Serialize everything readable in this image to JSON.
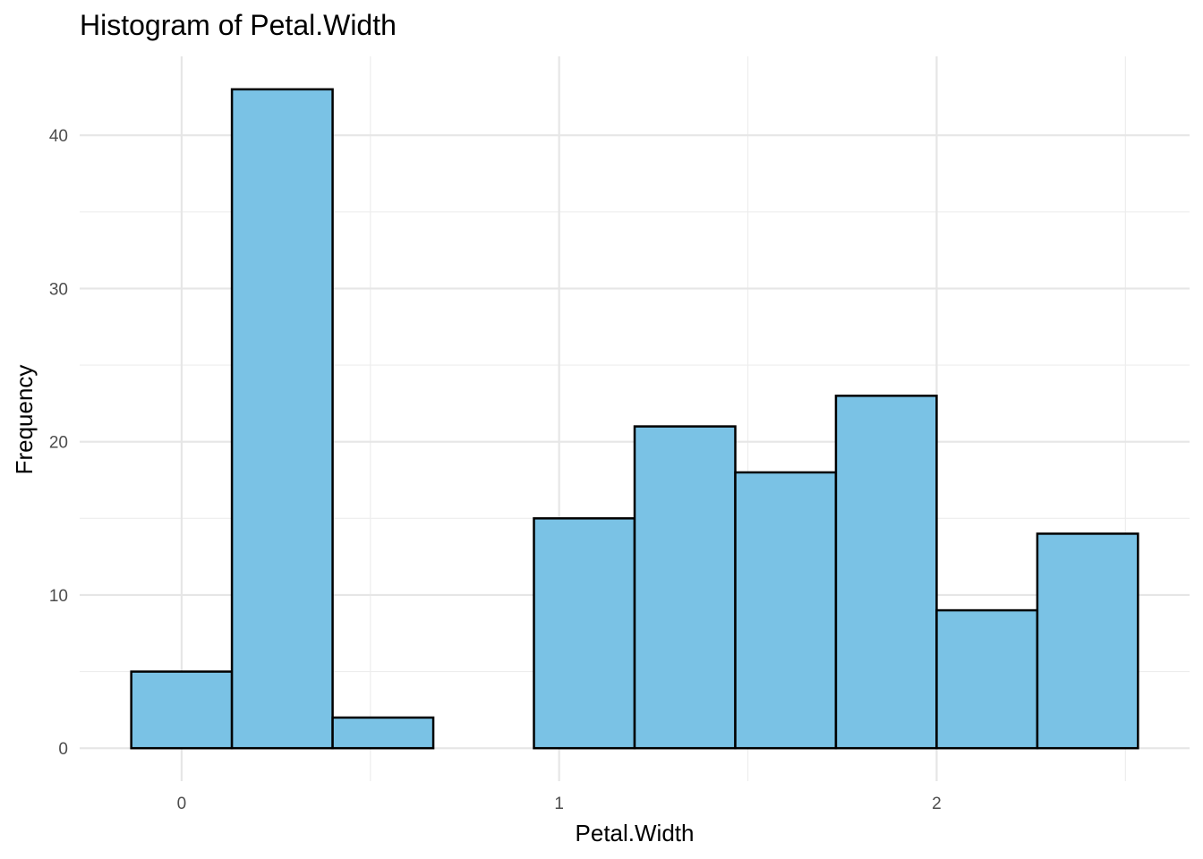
{
  "chart_data": {
    "type": "bar",
    "title": "Histogram of Petal.Width",
    "xlabel": "Petal.Width",
    "ylabel": "Frequency",
    "bin_width": 0.2667,
    "bins": [
      {
        "x0": -0.1333,
        "x1": 0.1333,
        "count": 5
      },
      {
        "x0": 0.1333,
        "x1": 0.4,
        "count": 43
      },
      {
        "x0": 0.4,
        "x1": 0.6667,
        "count": 2
      },
      {
        "x0": 0.6667,
        "x1": 0.9333,
        "count": 0
      },
      {
        "x0": 0.9333,
        "x1": 1.2,
        "count": 15
      },
      {
        "x0": 1.2,
        "x1": 1.4667,
        "count": 21
      },
      {
        "x0": 1.4667,
        "x1": 1.7333,
        "count": 18
      },
      {
        "x0": 1.7333,
        "x1": 2.0,
        "count": 23
      },
      {
        "x0": 2.0,
        "x1": 2.2667,
        "count": 9
      },
      {
        "x0": 2.2667,
        "x1": 2.5333,
        "count": 14
      }
    ],
    "xlim": [
      -0.27,
      2.67
    ],
    "ylim": [
      -2.15,
      45.15
    ],
    "x_ticks": [
      0,
      1,
      2
    ],
    "x_tick_labels": [
      "0",
      "1",
      "2"
    ],
    "x_minor_ticks": [
      0.5,
      1.5,
      2.5
    ],
    "y_ticks": [
      0,
      10,
      20,
      30,
      40
    ],
    "y_tick_labels": [
      "0",
      "10",
      "20",
      "30",
      "40"
    ],
    "y_minor_ticks": [
      5,
      15,
      25,
      35
    ],
    "grid": true,
    "legend": "none",
    "colors": {
      "fill": "#7ac2e5",
      "stroke": "#000000",
      "grid": "#e6e6e6"
    }
  }
}
